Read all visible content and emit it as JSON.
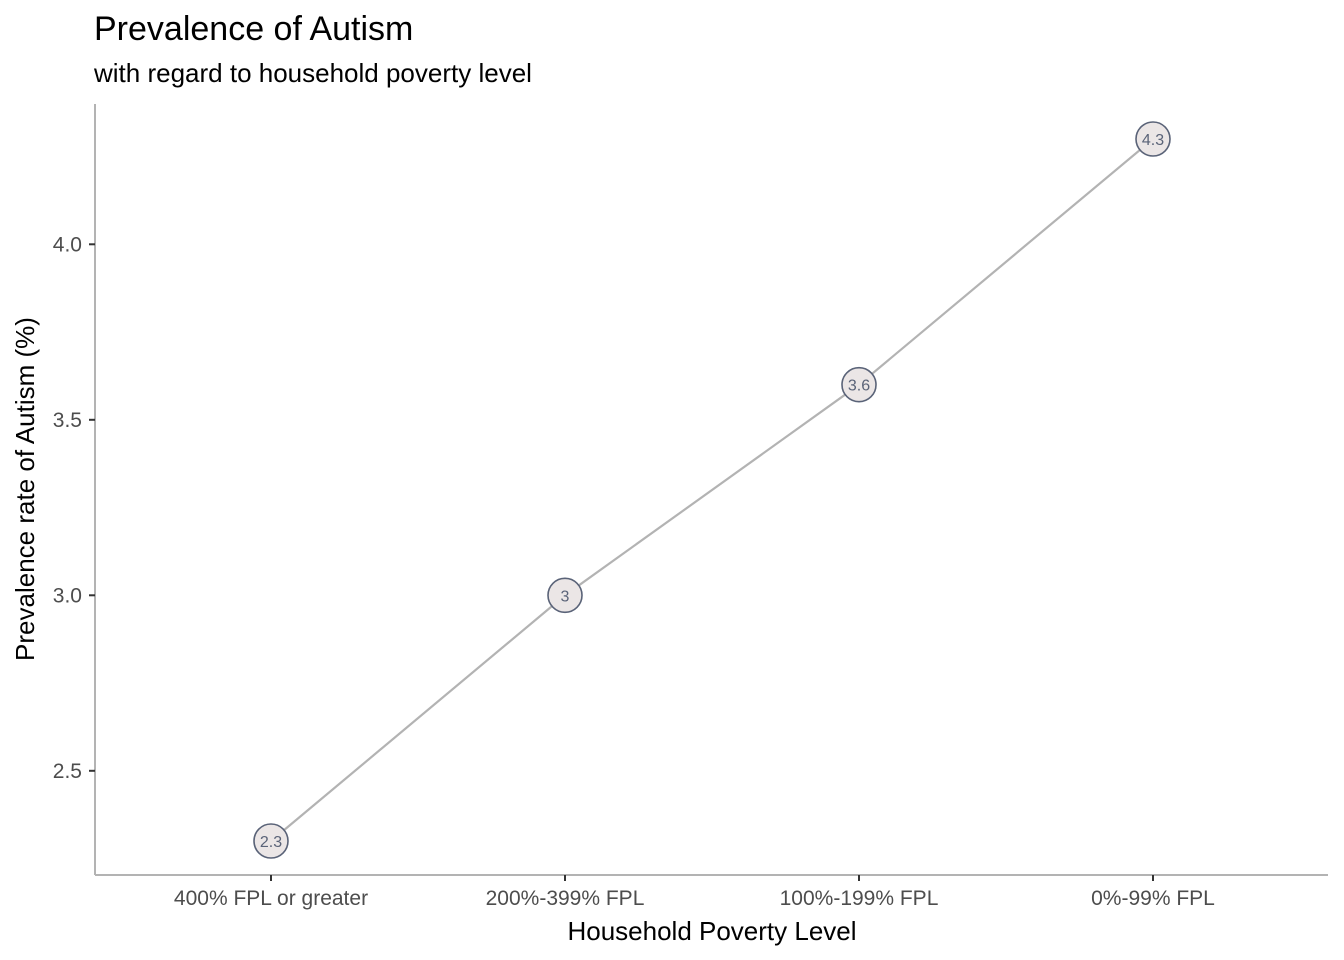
{
  "chart_data": {
    "type": "line",
    "title": "Prevalence of Autism",
    "subtitle": "with regard to household poverty level",
    "xlabel": "Household Poverty Level",
    "ylabel": "Prevalence rate of Autism (%)",
    "categories": [
      "400% FPL or greater",
      "200%-399% FPL",
      "100%-199% FPL",
      "0%-99% FPL"
    ],
    "values": [
      2.3,
      3.0,
      3.6,
      4.3
    ],
    "point_labels": [
      "2.3",
      "3",
      "3.6",
      "4.3"
    ],
    "y_ticks": [
      2.5,
      3.0,
      3.5,
      4.0
    ],
    "y_tick_labels": [
      "2.5",
      "3.0",
      "3.5",
      "4.0"
    ],
    "ylim": [
      2.21,
      4.4
    ],
    "grid": false,
    "legend": "none",
    "colors": {
      "line": "#b3b3b3",
      "point_fill": "#ebe6e6",
      "point_stroke": "#5a6378",
      "axis": "#b3b3b3",
      "tick": "#333333"
    }
  }
}
